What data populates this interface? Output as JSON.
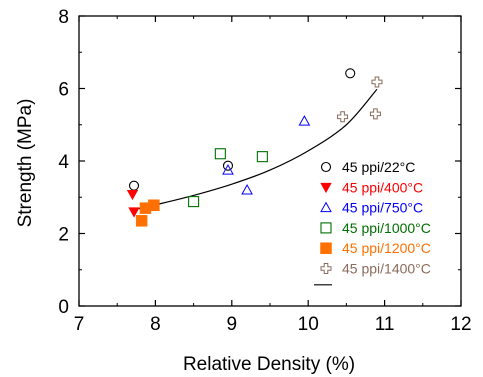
{
  "chart_data": {
    "type": "scatter",
    "xlabel": "Relative Density (%)",
    "ylabel": "Strength (MPa)",
    "xlim": [
      7,
      12
    ],
    "ylim": [
      0,
      8
    ],
    "xticks": [
      "7",
      "8",
      "9",
      "10",
      "11",
      "12"
    ],
    "yticks": [
      "0",
      "2",
      "4",
      "6",
      "8"
    ],
    "grid": false,
    "legend_position": "right",
    "series": [
      {
        "name": "45 ppi/22°C",
        "marker": "circle-open",
        "color": "#000000",
        "points": [
          [
            7.72,
            3.32
          ],
          [
            8.95,
            3.87
          ],
          [
            10.55,
            6.42
          ]
        ]
      },
      {
        "name": "45 ppi/400°C",
        "marker": "triangle-down-filled",
        "color": "#ff0000",
        "points": [
          [
            7.7,
            3.08
          ],
          [
            7.72,
            2.6
          ]
        ]
      },
      {
        "name": "45 ppi/750°C",
        "marker": "triangle-up-open",
        "color": "#0000ff",
        "points": [
          [
            8.95,
            3.75
          ],
          [
            9.2,
            3.2
          ],
          [
            9.95,
            5.1
          ]
        ]
      },
      {
        "name": "45 ppi/1000°C",
        "marker": "square-open",
        "color": "#007000",
        "points": [
          [
            8.5,
            2.88
          ],
          [
            8.85,
            4.2
          ],
          [
            9.4,
            4.12
          ]
        ]
      },
      {
        "name": "45 ppi/1200°C",
        "marker": "square-filled",
        "color": "#ff7000",
        "points": [
          [
            7.82,
            2.35
          ],
          [
            7.87,
            2.7
          ],
          [
            7.98,
            2.78
          ]
        ]
      },
      {
        "name": "45 ppi/1400°C",
        "marker": "cross-open",
        "color": "#8b6b5c",
        "points": [
          [
            10.45,
            5.22
          ],
          [
            10.88,
            5.3
          ],
          [
            10.9,
            6.18
          ]
        ]
      }
    ],
    "fit": {
      "type": "curve",
      "color": "#000000",
      "points": [
        [
          7.75,
          2.67
        ],
        [
          8.0,
          2.79
        ],
        [
          8.5,
          3.05
        ],
        [
          9.0,
          3.36
        ],
        [
          9.5,
          3.75
        ],
        [
          10.0,
          4.28
        ],
        [
          10.5,
          5.0
        ],
        [
          10.9,
          5.98
        ]
      ]
    }
  }
}
